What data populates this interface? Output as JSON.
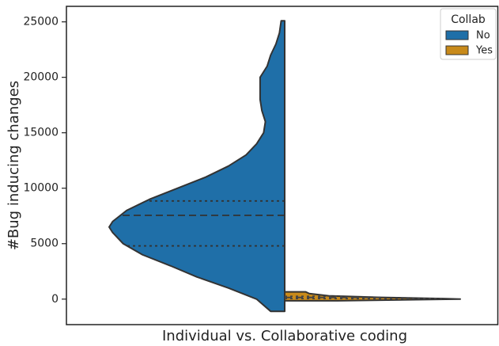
{
  "chart_data": {
    "type": "violin",
    "x_label": "Individual vs. Collaborative coding",
    "y_label": "#Bug inducing changes",
    "ylim": [
      -2300,
      26400
    ],
    "yticks": [
      0,
      5000,
      10000,
      15000,
      20000,
      25000
    ],
    "legend_title": "Collab",
    "legend_position": "upper right",
    "series": [
      {
        "name": "No",
        "color": "#1f6fa8",
        "side": "left",
        "y": [
          -1100,
          0,
          1000,
          2000,
          3000,
          4000,
          5000,
          6000,
          6500,
          7000,
          8000,
          9000,
          10000,
          11000,
          12000,
          13000,
          14000,
          15000,
          16000,
          17000,
          18000,
          19000,
          20000,
          21000,
          22000,
          23000,
          24000,
          25100
        ],
        "density": [
          0.08,
          0.16,
          0.32,
          0.5,
          0.65,
          0.81,
          0.92,
          0.98,
          1.0,
          0.98,
          0.9,
          0.77,
          0.61,
          0.45,
          0.32,
          0.22,
          0.16,
          0.12,
          0.11,
          0.13,
          0.14,
          0.14,
          0.14,
          0.1,
          0.08,
          0.05,
          0.03,
          0.02
        ],
        "quartiles": [
          4800,
          7550,
          8850
        ]
      },
      {
        "name": "Yes",
        "color": "#c88a1a",
        "side": "right",
        "y": [
          -150,
          0,
          50,
          150,
          300,
          500,
          650
        ],
        "density": [
          0.3,
          1.0,
          0.9,
          0.55,
          0.25,
          0.14,
          0.12
        ],
        "quartiles": [
          50,
          150,
          250
        ]
      }
    ]
  }
}
